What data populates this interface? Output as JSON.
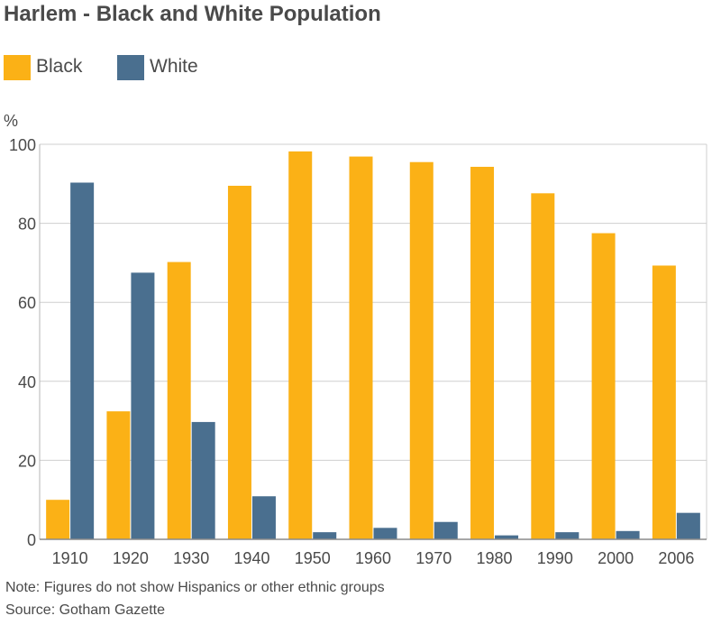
{
  "chart_data": {
    "type": "bar",
    "title": "Harlem - Black and White Population",
    "ylabel": "%",
    "xlabel": "",
    "ylim": [
      0,
      100
    ],
    "yticks": [
      0,
      20,
      40,
      60,
      80,
      100
    ],
    "categories": [
      "1910",
      "1920",
      "1930",
      "1940",
      "1950",
      "1960",
      "1970",
      "1980",
      "1990",
      "2000",
      "2006"
    ],
    "series": [
      {
        "name": "Black",
        "color": "#FBB116",
        "values": [
          10,
          32.4,
          70.2,
          89.5,
          98.2,
          96.9,
          95.5,
          94.3,
          87.6,
          77.5,
          69.3
        ]
      },
      {
        "name": "White",
        "color": "#4A6F8F",
        "values": [
          90.3,
          67.5,
          29.7,
          10.9,
          1.8,
          2.9,
          4.4,
          1.0,
          1.8,
          2.1,
          6.7
        ]
      }
    ],
    "grid": true,
    "legend_position": "top-left"
  },
  "note": "Note: Figures do not show Hispanics or other ethnic groups",
  "source": "Source: Gotham Gazette"
}
